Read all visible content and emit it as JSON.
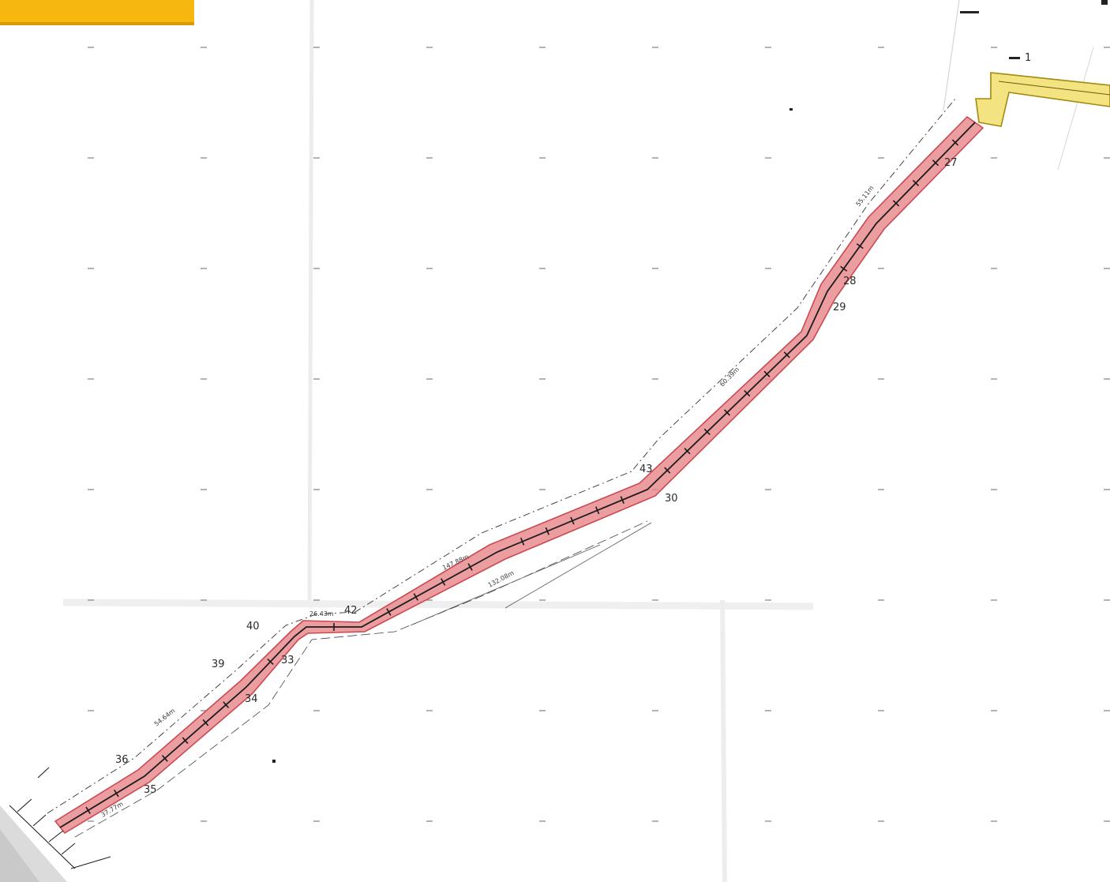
{
  "map": {
    "corridor_color": "#e8878a",
    "corridor_edge_color": "#c94a52",
    "connector_color": "#f3e27a",
    "tab_color": "#f6b80f",
    "point_labels": [
      "1",
      "27",
      "28",
      "29",
      "30",
      "33",
      "34",
      "35",
      "36",
      "39",
      "40",
      "42",
      "43"
    ],
    "segment_labels": [
      "147.88m",
      "132.08m",
      "26.43m",
      "54.64m",
      "37.77m",
      "55.11m",
      "60.39m"
    ]
  }
}
